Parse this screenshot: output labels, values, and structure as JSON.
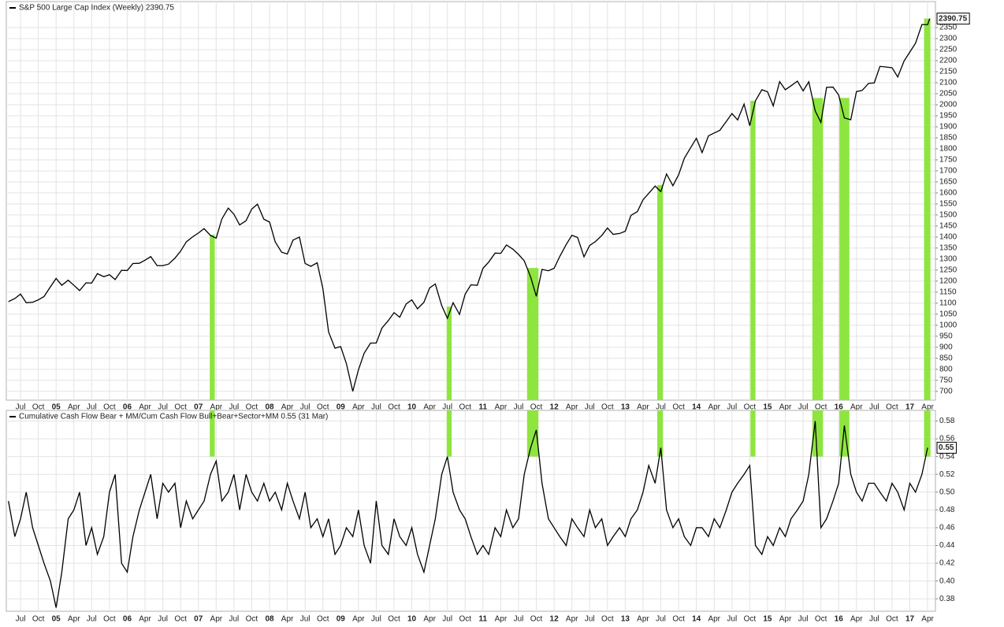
{
  "chart_data": [
    {
      "type": "line",
      "title": "S&P 500 Large Cap Index (Weekly) 2390.75",
      "color": "#000000",
      "grid": true,
      "xlim": [
        2004.3,
        2017.36
      ],
      "ylim": [
        660,
        2468
      ],
      "x": [
        2004.33,
        2004.42,
        2004.5,
        2004.58,
        2004.67,
        2004.75,
        2004.83,
        2004.92,
        2005.0,
        2005.08,
        2005.17,
        2005.25,
        2005.33,
        2005.42,
        2005.5,
        2005.58,
        2005.67,
        2005.75,
        2005.83,
        2005.92,
        2006.0,
        2006.08,
        2006.17,
        2006.25,
        2006.33,
        2006.42,
        2006.5,
        2006.58,
        2006.67,
        2006.75,
        2006.83,
        2006.92,
        2007.0,
        2007.08,
        2007.17,
        2007.25,
        2007.33,
        2007.42,
        2007.5,
        2007.58,
        2007.67,
        2007.75,
        2007.83,
        2007.92,
        2008.0,
        2008.08,
        2008.17,
        2008.25,
        2008.33,
        2008.42,
        2008.5,
        2008.58,
        2008.67,
        2008.75,
        2008.83,
        2008.92,
        2009.0,
        2009.08,
        2009.17,
        2009.25,
        2009.33,
        2009.42,
        2009.5,
        2009.58,
        2009.67,
        2009.75,
        2009.83,
        2009.92,
        2010.0,
        2010.08,
        2010.17,
        2010.25,
        2010.33,
        2010.42,
        2010.5,
        2010.58,
        2010.67,
        2010.75,
        2010.83,
        2010.92,
        2011.0,
        2011.08,
        2011.17,
        2011.25,
        2011.33,
        2011.42,
        2011.5,
        2011.58,
        2011.67,
        2011.75,
        2011.83,
        2011.92,
        2012.0,
        2012.08,
        2012.17,
        2012.25,
        2012.33,
        2012.42,
        2012.5,
        2012.58,
        2012.67,
        2012.75,
        2012.83,
        2012.92,
        2013.0,
        2013.08,
        2013.17,
        2013.25,
        2013.33,
        2013.42,
        2013.5,
        2013.58,
        2013.67,
        2013.75,
        2013.83,
        2013.92,
        2014.0,
        2014.08,
        2014.17,
        2014.25,
        2014.33,
        2014.42,
        2014.5,
        2014.58,
        2014.67,
        2014.75,
        2014.83,
        2014.92,
        2015.0,
        2015.08,
        2015.17,
        2015.25,
        2015.33,
        2015.42,
        2015.5,
        2015.58,
        2015.67,
        2015.75,
        2015.83,
        2015.92,
        2016.0,
        2016.08,
        2016.17,
        2016.25,
        2016.33,
        2016.42,
        2016.5,
        2016.58,
        2016.67,
        2016.75,
        2016.83,
        2016.92,
        2017.0,
        2017.08,
        2017.17,
        2017.25,
        2017.28
      ],
      "values": [
        1107,
        1121,
        1141,
        1102,
        1104,
        1115,
        1130,
        1174,
        1212,
        1181,
        1204,
        1181,
        1157,
        1192,
        1191,
        1234,
        1220,
        1229,
        1207,
        1249,
        1248,
        1280,
        1281,
        1295,
        1311,
        1270,
        1270,
        1277,
        1304,
        1336,
        1378,
        1401,
        1418,
        1438,
        1407,
        1395,
        1482,
        1531,
        1503,
        1455,
        1474,
        1527,
        1549,
        1481,
        1468,
        1378,
        1331,
        1323,
        1386,
        1400,
        1280,
        1267,
        1283,
        1166,
        969,
        896,
        903,
        826,
        700,
        798,
        873,
        919,
        919,
        987,
        1021,
        1057,
        1036,
        1096,
        1115,
        1074,
        1104,
        1169,
        1187,
        1089,
        1031,
        1102,
        1049,
        1141,
        1183,
        1181,
        1258,
        1286,
        1327,
        1326,
        1364,
        1345,
        1321,
        1292,
        1219,
        1131,
        1253,
        1247,
        1258,
        1312,
        1366,
        1408,
        1398,
        1310,
        1362,
        1379,
        1407,
        1441,
        1412,
        1416,
        1426,
        1498,
        1515,
        1569,
        1598,
        1631,
        1606,
        1686,
        1633,
        1682,
        1757,
        1806,
        1848,
        1783,
        1859,
        1872,
        1884,
        1924,
        1960,
        1931,
        2003,
        1905,
        2018,
        2068,
        2059,
        1995,
        2105,
        2068,
        2086,
        2107,
        2063,
        2104,
        1972,
        1920,
        2079,
        2080,
        2044,
        1940,
        1932,
        2060,
        2065,
        2097,
        2099,
        2174,
        2171,
        2168,
        2126,
        2199,
        2239,
        2279,
        2364,
        2363,
        2390.75
      ],
      "yticks": [
        700,
        750,
        800,
        850,
        900,
        950,
        1000,
        1050,
        1100,
        1150,
        1200,
        1250,
        1300,
        1350,
        1400,
        1450,
        1500,
        1550,
        1600,
        1650,
        1700,
        1750,
        1800,
        1850,
        1900,
        1950,
        2000,
        2050,
        2100,
        2150,
        2200,
        2250,
        2300,
        2350
      ],
      "xticks": [
        {
          "value": 2004.5,
          "label": "Jul"
        },
        {
          "value": 2004.75,
          "label": "Oct"
        },
        {
          "value": 2005,
          "label": "05"
        },
        {
          "value": 2005.25,
          "label": "Apr"
        },
        {
          "value": 2005.5,
          "label": "Jul"
        },
        {
          "value": 2005.75,
          "label": "Oct"
        },
        {
          "value": 2006,
          "label": "06"
        },
        {
          "value": 2006.25,
          "label": "Apr"
        },
        {
          "value": 2006.5,
          "label": "Jul"
        },
        {
          "value": 2006.75,
          "label": "Oct"
        },
        {
          "value": 2007,
          "label": "07"
        },
        {
          "value": 2007.25,
          "label": "Apr"
        },
        {
          "value": 2007.5,
          "label": "Jul"
        },
        {
          "value": 2007.75,
          "label": "Oct"
        },
        {
          "value": 2008,
          "label": "08"
        },
        {
          "value": 2008.25,
          "label": "Apr"
        },
        {
          "value": 2008.5,
          "label": "Jul"
        },
        {
          "value": 2008.75,
          "label": "Oct"
        },
        {
          "value": 2009,
          "label": "09"
        },
        {
          "value": 2009.25,
          "label": "Apr"
        },
        {
          "value": 2009.5,
          "label": "Jul"
        },
        {
          "value": 2009.75,
          "label": "Oct"
        },
        {
          "value": 2010,
          "label": "10"
        },
        {
          "value": 2010.25,
          "label": "Apr"
        },
        {
          "value": 2010.5,
          "label": "Jul"
        },
        {
          "value": 2010.75,
          "label": "Oct"
        },
        {
          "value": 2011,
          "label": "11"
        },
        {
          "value": 2011.25,
          "label": "Apr"
        },
        {
          "value": 2011.5,
          "label": "Jul"
        },
        {
          "value": 2011.75,
          "label": "Oct"
        },
        {
          "value": 2012,
          "label": "12"
        },
        {
          "value": 2012.25,
          "label": "Apr"
        },
        {
          "value": 2012.5,
          "label": "Jul"
        },
        {
          "value": 2012.75,
          "label": "Oct"
        },
        {
          "value": 2013,
          "label": "13"
        },
        {
          "value": 2013.25,
          "label": "Apr"
        },
        {
          "value": 2013.5,
          "label": "Jul"
        },
        {
          "value": 2013.75,
          "label": "Oct"
        },
        {
          "value": 2014,
          "label": "14"
        },
        {
          "value": 2014.25,
          "label": "Apr"
        },
        {
          "value": 2014.5,
          "label": "Jul"
        },
        {
          "value": 2014.75,
          "label": "Oct"
        },
        {
          "value": 2015,
          "label": "15"
        },
        {
          "value": 2015.25,
          "label": "Apr"
        },
        {
          "value": 2015.5,
          "label": "Jul"
        },
        {
          "value": 2015.75,
          "label": "Oct"
        },
        {
          "value": 2016,
          "label": "16"
        },
        {
          "value": 2016.25,
          "label": "Apr"
        },
        {
          "value": 2016.5,
          "label": "Jul"
        },
        {
          "value": 2016.75,
          "label": "Oct"
        },
        {
          "value": 2017,
          "label": "17"
        },
        {
          "value": 2017.25,
          "label": "Apr"
        }
      ],
      "signals": {
        "color": "#8ee53f",
        "periods": [
          [
            2007.16,
            2007.23
          ],
          [
            2010.49,
            2010.56
          ],
          [
            2011.62,
            2011.78
          ],
          [
            2013.45,
            2013.53
          ],
          [
            2014.76,
            2014.83
          ],
          [
            2015.63,
            2015.78
          ],
          [
            2016.01,
            2016.15
          ],
          [
            2017.2,
            2017.29
          ]
        ]
      }
    },
    {
      "type": "line",
      "title": "Cumulative Cash Flow Bear + MM/Cum Cash Flow Bull+Bear+Sector+MM 0.55 (31 Mar)",
      "color": "#000000",
      "grid": true,
      "xlim": [
        2004.3,
        2017.36
      ],
      "ylim": [
        0.366,
        0.592
      ],
      "x": [
        2004.33,
        2004.42,
        2004.5,
        2004.58,
        2004.67,
        2004.75,
        2004.83,
        2004.92,
        2005.0,
        2005.08,
        2005.17,
        2005.25,
        2005.33,
        2005.42,
        2005.5,
        2005.58,
        2005.67,
        2005.75,
        2005.83,
        2005.92,
        2006.0,
        2006.08,
        2006.17,
        2006.25,
        2006.33,
        2006.42,
        2006.5,
        2006.58,
        2006.67,
        2006.75,
        2006.83,
        2006.92,
        2007.0,
        2007.08,
        2007.17,
        2007.25,
        2007.33,
        2007.42,
        2007.5,
        2007.58,
        2007.67,
        2007.75,
        2007.83,
        2007.92,
        2008.0,
        2008.08,
        2008.17,
        2008.25,
        2008.33,
        2008.42,
        2008.5,
        2008.58,
        2008.67,
        2008.75,
        2008.83,
        2008.92,
        2009.0,
        2009.08,
        2009.17,
        2009.25,
        2009.33,
        2009.42,
        2009.5,
        2009.58,
        2009.67,
        2009.75,
        2009.83,
        2009.92,
        2010.0,
        2010.08,
        2010.17,
        2010.25,
        2010.33,
        2010.42,
        2010.5,
        2010.58,
        2010.67,
        2010.75,
        2010.83,
        2010.92,
        2011.0,
        2011.08,
        2011.17,
        2011.25,
        2011.33,
        2011.42,
        2011.5,
        2011.58,
        2011.67,
        2011.75,
        2011.83,
        2011.92,
        2012.0,
        2012.08,
        2012.17,
        2012.25,
        2012.33,
        2012.42,
        2012.5,
        2012.58,
        2012.67,
        2012.75,
        2012.83,
        2012.92,
        2013.0,
        2013.08,
        2013.17,
        2013.25,
        2013.33,
        2013.42,
        2013.5,
        2013.58,
        2013.67,
        2013.75,
        2013.83,
        2013.92,
        2014.0,
        2014.08,
        2014.17,
        2014.25,
        2014.33,
        2014.42,
        2014.5,
        2014.58,
        2014.67,
        2014.75,
        2014.83,
        2014.92,
        2015.0,
        2015.08,
        2015.17,
        2015.25,
        2015.33,
        2015.42,
        2015.5,
        2015.58,
        2015.67,
        2015.75,
        2015.83,
        2015.92,
        2016.0,
        2016.08,
        2016.17,
        2016.25,
        2016.33,
        2016.42,
        2016.5,
        2016.58,
        2016.67,
        2016.75,
        2016.83,
        2016.92,
        2017.0,
        2017.08,
        2017.17,
        2017.25
      ],
      "values": [
        0.49,
        0.45,
        0.47,
        0.5,
        0.46,
        0.44,
        0.42,
        0.4,
        0.37,
        0.41,
        0.47,
        0.48,
        0.5,
        0.44,
        0.46,
        0.43,
        0.45,
        0.5,
        0.52,
        0.42,
        0.41,
        0.45,
        0.48,
        0.5,
        0.52,
        0.47,
        0.51,
        0.5,
        0.51,
        0.46,
        0.49,
        0.47,
        0.48,
        0.49,
        0.52,
        0.535,
        0.49,
        0.5,
        0.52,
        0.48,
        0.52,
        0.5,
        0.49,
        0.51,
        0.49,
        0.5,
        0.48,
        0.51,
        0.49,
        0.47,
        0.5,
        0.46,
        0.47,
        0.45,
        0.47,
        0.43,
        0.44,
        0.46,
        0.45,
        0.48,
        0.44,
        0.42,
        0.49,
        0.44,
        0.43,
        0.47,
        0.45,
        0.44,
        0.46,
        0.43,
        0.41,
        0.44,
        0.47,
        0.52,
        0.54,
        0.5,
        0.48,
        0.47,
        0.45,
        0.43,
        0.44,
        0.43,
        0.46,
        0.45,
        0.48,
        0.46,
        0.47,
        0.52,
        0.55,
        0.57,
        0.51,
        0.47,
        0.46,
        0.45,
        0.44,
        0.47,
        0.46,
        0.45,
        0.48,
        0.46,
        0.47,
        0.44,
        0.45,
        0.46,
        0.45,
        0.47,
        0.48,
        0.5,
        0.53,
        0.51,
        0.55,
        0.48,
        0.46,
        0.47,
        0.45,
        0.44,
        0.46,
        0.46,
        0.45,
        0.47,
        0.46,
        0.48,
        0.5,
        0.51,
        0.52,
        0.53,
        0.44,
        0.43,
        0.45,
        0.44,
        0.46,
        0.45,
        0.47,
        0.48,
        0.49,
        0.52,
        0.58,
        0.46,
        0.47,
        0.49,
        0.51,
        0.575,
        0.52,
        0.5,
        0.49,
        0.51,
        0.51,
        0.5,
        0.49,
        0.51,
        0.5,
        0.48,
        0.51,
        0.5,
        0.52,
        0.55
      ],
      "yticks": [
        0.38,
        {
          "value": 0.4,
          "label": "0.40"
        },
        0.42,
        0.44,
        0.46,
        0.48,
        {
          "value": 0.5,
          "label": "0.50"
        },
        0.52,
        0.54,
        0.56,
        0.58
      ],
      "xticks": [
        {
          "value": 2004.5,
          "label": "Jul"
        },
        {
          "value": 2004.75,
          "label": "Oct"
        },
        {
          "value": 2005,
          "label": "05"
        },
        {
          "value": 2005.25,
          "label": "Apr"
        },
        {
          "value": 2005.5,
          "label": "Jul"
        },
        {
          "value": 2005.75,
          "label": "Oct"
        },
        {
          "value": 2006,
          "label": "06"
        },
        {
          "value": 2006.25,
          "label": "Apr"
        },
        {
          "value": 2006.5,
          "label": "Jul"
        },
        {
          "value": 2006.75,
          "label": "Oct"
        },
        {
          "value": 2007,
          "label": "07"
        },
        {
          "value": 2007.25,
          "label": "Apr"
        },
        {
          "value": 2007.5,
          "label": "Jul"
        },
        {
          "value": 2007.75,
          "label": "Oct"
        },
        {
          "value": 2008,
          "label": "08"
        },
        {
          "value": 2008.25,
          "label": "Apr"
        },
        {
          "value": 2008.5,
          "label": "Jul"
        },
        {
          "value": 2008.75,
          "label": "Oct"
        },
        {
          "value": 2009,
          "label": "09"
        },
        {
          "value": 2009.25,
          "label": "Apr"
        },
        {
          "value": 2009.5,
          "label": "Jul"
        },
        {
          "value": 2009.75,
          "label": "Oct"
        },
        {
          "value": 2010,
          "label": "10"
        },
        {
          "value": 2010.25,
          "label": "Apr"
        },
        {
          "value": 2010.5,
          "label": "Jul"
        },
        {
          "value": 2010.75,
          "label": "Oct"
        },
        {
          "value": 2011,
          "label": "11"
        },
        {
          "value": 2011.25,
          "label": "Apr"
        },
        {
          "value": 2011.5,
          "label": "Jul"
        },
        {
          "value": 2011.75,
          "label": "Oct"
        },
        {
          "value": 2012,
          "label": "12"
        },
        {
          "value": 2012.25,
          "label": "Apr"
        },
        {
          "value": 2012.5,
          "label": "Jul"
        },
        {
          "value": 2012.75,
          "label": "Oct"
        },
        {
          "value": 2013,
          "label": "13"
        },
        {
          "value": 2013.25,
          "label": "Apr"
        },
        {
          "value": 2013.5,
          "label": "Jul"
        },
        {
          "value": 2013.75,
          "label": "Oct"
        },
        {
          "value": 2014,
          "label": "14"
        },
        {
          "value": 2014.25,
          "label": "Apr"
        },
        {
          "value": 2014.5,
          "label": "Jul"
        },
        {
          "value": 2014.75,
          "label": "Oct"
        },
        {
          "value": 2015,
          "label": "15"
        },
        {
          "value": 2015.25,
          "label": "Apr"
        },
        {
          "value": 2015.5,
          "label": "Jul"
        },
        {
          "value": 2015.75,
          "label": "Oct"
        },
        {
          "value": 2016,
          "label": "16"
        },
        {
          "value": 2016.25,
          "label": "Apr"
        },
        {
          "value": 2016.5,
          "label": "Jul"
        },
        {
          "value": 2016.75,
          "label": "Oct"
        },
        {
          "value": 2017,
          "label": "17"
        },
        {
          "value": 2017.25,
          "label": "Apr"
        }
      ],
      "signals": {
        "color": "#8ee53f",
        "level": 0.54,
        "periods": [
          [
            2007.16,
            2007.23
          ],
          [
            2010.49,
            2010.56
          ],
          [
            2011.62,
            2011.78
          ],
          [
            2013.45,
            2013.53
          ],
          [
            2014.76,
            2014.83
          ],
          [
            2015.63,
            2015.78
          ],
          [
            2016.01,
            2016.15
          ],
          [
            2017.2,
            2017.29
          ]
        ]
      }
    }
  ]
}
